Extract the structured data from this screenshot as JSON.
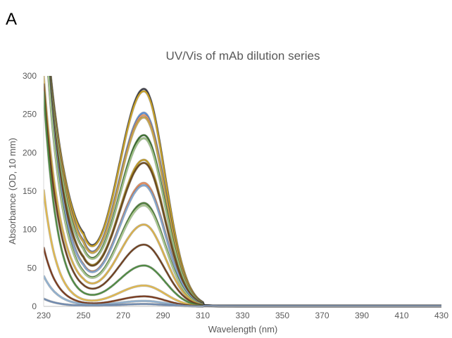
{
  "panel_label": "A",
  "chart_data": {
    "type": "line",
    "title": "UV/Vis of mAb dilution series",
    "xlabel": "Wavelength (nm)",
    "ylabel": "Absorbamce (OD, 10 mm)",
    "xlim": [
      230,
      430
    ],
    "ylim": [
      0,
      300
    ],
    "x_ticks": [
      230,
      250,
      270,
      290,
      310,
      330,
      350,
      370,
      390,
      410,
      430
    ],
    "y_ticks": [
      0,
      50,
      100,
      150,
      200,
      250,
      300
    ],
    "grid": false,
    "legend": "none",
    "curve_shape": "mAb protein absorbance: steep rise below 250 nm, minimum near 250 nm, peak near 280 nm, ~0 beyond 310 nm",
    "series": [
      {
        "peak_280": 282,
        "min_250": 96,
        "at_230": 400,
        "color": "#3f3f48"
      },
      {
        "peak_280": 279,
        "min_250": 94,
        "at_230": 400,
        "color": "#c9a227"
      },
      {
        "peak_280": 251,
        "min_250": 86,
        "at_230": 400,
        "color": "#5b8fd6"
      },
      {
        "peak_280": 248,
        "min_250": 85,
        "at_230": 400,
        "color": "#e59a6b"
      },
      {
        "peak_280": 245,
        "min_250": 84,
        "at_230": 400,
        "color": "#c7a64a"
      },
      {
        "peak_280": 222,
        "min_250": 76,
        "at_230": 400,
        "color": "#3a6f2f"
      },
      {
        "peak_280": 218,
        "min_250": 75,
        "at_230": 400,
        "color": "#9cc083"
      },
      {
        "peak_280": 190,
        "min_250": 65,
        "at_230": 400,
        "color": "#c09a24"
      },
      {
        "peak_280": 186,
        "min_250": 64,
        "at_230": 400,
        "color": "#6b4a1f"
      },
      {
        "peak_280": 160,
        "min_250": 55,
        "at_230": 400,
        "color": "#e58a5a"
      },
      {
        "peak_280": 157,
        "min_250": 54,
        "at_230": 400,
        "color": "#7fa4d0"
      },
      {
        "peak_280": 134,
        "min_250": 46,
        "at_230": 400,
        "color": "#4e7e3a"
      },
      {
        "peak_280": 131,
        "min_250": 45,
        "at_230": 400,
        "color": "#a8c98e"
      },
      {
        "peak_280": 106,
        "min_250": 36,
        "at_230": 300,
        "color": "#d9b04a"
      },
      {
        "peak_280": 80,
        "min_250": 28,
        "at_230": 290,
        "color": "#6e4020"
      },
      {
        "peak_280": 53,
        "min_250": 18,
        "at_230": 280,
        "color": "#4f8a42"
      },
      {
        "peak_280": 27,
        "min_250": 9,
        "at_230": 152,
        "color": "#e0b84d"
      },
      {
        "peak_280": 13,
        "min_250": 5,
        "at_230": 77,
        "color": "#7a3b1e"
      },
      {
        "peak_280": 7,
        "min_250": 3,
        "at_230": 40,
        "color": "#8fb0cf"
      },
      {
        "peak_280": 3,
        "min_250": 1,
        "at_230": 10,
        "color": "#6f8ab0"
      }
    ]
  }
}
